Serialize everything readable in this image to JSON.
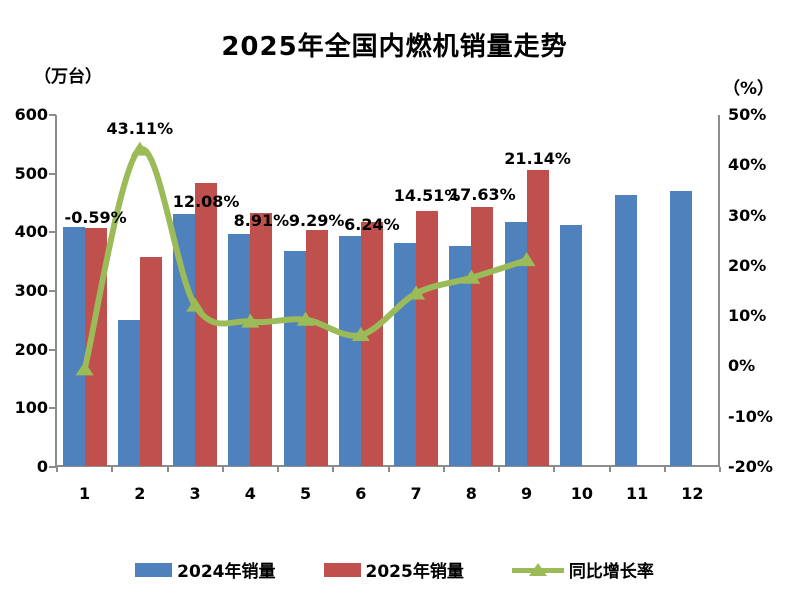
{
  "title": "2025年全国内燃机销量走势",
  "left_axis_unit": "（万台）",
  "right_axis_unit": "（%）",
  "legend": {
    "series_2024": "2024年销量",
    "series_2025": "2025年销量",
    "growth": "同比增长率"
  },
  "colors": {
    "bar_2024": "#4F81BD",
    "bar_2025": "#C0504D",
    "growth_line": "#9BBB59",
    "axis": "#8c8c8c",
    "text": "#000000"
  },
  "chart_data": {
    "type": "bar",
    "subtype": "grouped-bars-with-line-overlay",
    "title": "2025年全国内燃机销量走势",
    "categories": [
      "1",
      "2",
      "3",
      "4",
      "5",
      "6",
      "7",
      "8",
      "9",
      "10",
      "11",
      "12"
    ],
    "series": [
      {
        "name": "2024年销量",
        "type": "bar",
        "axis": "left",
        "color": "#4F81BD",
        "values": [
          409,
          250,
          432,
          398,
          369,
          393,
          381,
          377,
          418,
          412,
          463,
          470
        ]
      },
      {
        "name": "2025年销量",
        "type": "bar",
        "axis": "left",
        "color": "#C0504D",
        "values": [
          407,
          358,
          484,
          433,
          404,
          417,
          436,
          444,
          506,
          null,
          null,
          null
        ]
      },
      {
        "name": "同比增长率",
        "type": "line",
        "axis": "right",
        "color": "#9BBB59",
        "marker": "triangle",
        "values": [
          -0.59,
          43.11,
          12.08,
          8.91,
          9.29,
          6.24,
          14.51,
          17.63,
          21.14,
          null,
          null,
          null
        ],
        "data_labels": [
          "-0.59%",
          "43.11%",
          "12.08%",
          "8.91%",
          "9.29%",
          "6.24%",
          "14.51%",
          "17.63%",
          "21.14%"
        ]
      }
    ],
    "left_axis": {
      "unit": "（万台）",
      "min": 0,
      "max": 600,
      "ticks": [
        "600",
        "500",
        "400",
        "300",
        "200",
        "100",
        "0"
      ]
    },
    "right_axis": {
      "unit": "（%）",
      "min": -20,
      "max": 50,
      "ticks": [
        "50%",
        "40%",
        "30%",
        "20%",
        "10%",
        "0%",
        "-10%",
        "-20%"
      ]
    },
    "xlabel": "",
    "ylabel": "",
    "grid": false,
    "legend_position": "bottom"
  }
}
